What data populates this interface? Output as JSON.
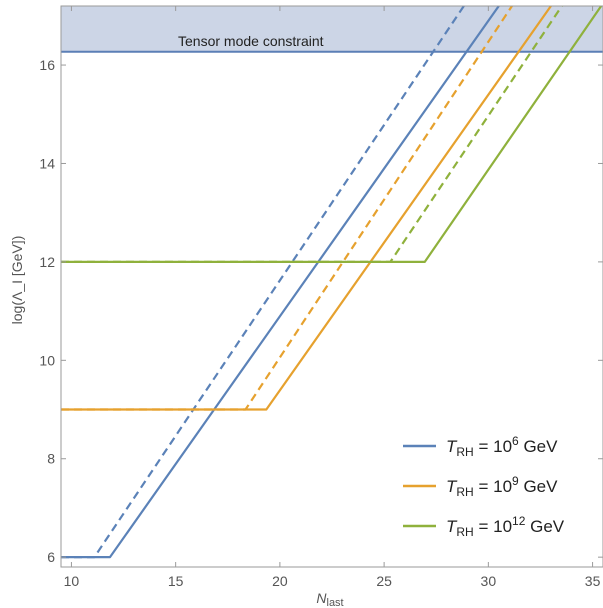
{
  "chart_data": {
    "type": "line",
    "title": "",
    "xlabel": {
      "main": "N",
      "sub": "last"
    },
    "ylabel": "log(Λ_I [GeV])",
    "xlim": [
      9.5,
      35.5
    ],
    "ylim": [
      5.8,
      17.2
    ],
    "xticks": [
      10,
      15,
      20,
      25,
      30,
      35
    ],
    "yticks": [
      6,
      8,
      10,
      12,
      14,
      16
    ],
    "grid": false,
    "legend_position": "bottom-right",
    "constraint": {
      "label": "Tensor mode constraint",
      "y": 16.27,
      "fill_color": "#ccd5e6",
      "line_color": "#5b7fb6"
    },
    "series": [
      {
        "name": "T_RH = 10^6 GeV",
        "label": {
          "base": "T",
          "sub": "RH",
          "mid": " = 10",
          "exp": "6",
          "unit": " GeV"
        },
        "color": "#5b82b8",
        "style": "solid",
        "x": [
          9.5,
          11.85,
          31.0
        ],
        "y": [
          6.0,
          6.0,
          17.5
        ]
      },
      {
        "name": "T_RH = 10^6 GeV (dashed)",
        "color": "#5b82b8",
        "style": "dashed",
        "x": [
          9.5,
          11.1,
          29.3
        ],
        "y": [
          6.0,
          6.0,
          17.5
        ]
      },
      {
        "name": "T_RH = 10^9 GeV",
        "label": {
          "base": "T",
          "sub": "RH",
          "mid": " = 10",
          "exp": "9",
          "unit": " GeV"
        },
        "color": "#e6a12e",
        "style": "solid",
        "x": [
          9.5,
          19.35,
          33.5
        ],
        "y": [
          9.0,
          9.0,
          17.5
        ]
      },
      {
        "name": "T_RH = 10^9 GeV (dashed)",
        "color": "#e6a12e",
        "style": "dashed",
        "x": [
          9.5,
          18.35,
          31.6
        ],
        "y": [
          9.0,
          9.0,
          17.5
        ]
      },
      {
        "name": "T_RH = 10^12 GeV",
        "label": {
          "base": "T",
          "sub": "RH",
          "mid": " = 10",
          "exp": "12",
          "unit": " GeV"
        },
        "color": "#8fb13c",
        "style": "solid",
        "x": [
          9.5,
          26.95,
          35.9
        ],
        "y": [
          12.0,
          12.0,
          17.5
        ]
      },
      {
        "name": "T_RH = 10^12 GeV (dashed)",
        "color": "#8fb13c",
        "style": "dashed",
        "x": [
          9.5,
          25.3,
          34.0
        ],
        "y": [
          12.0,
          12.0,
          17.5
        ]
      }
    ]
  }
}
